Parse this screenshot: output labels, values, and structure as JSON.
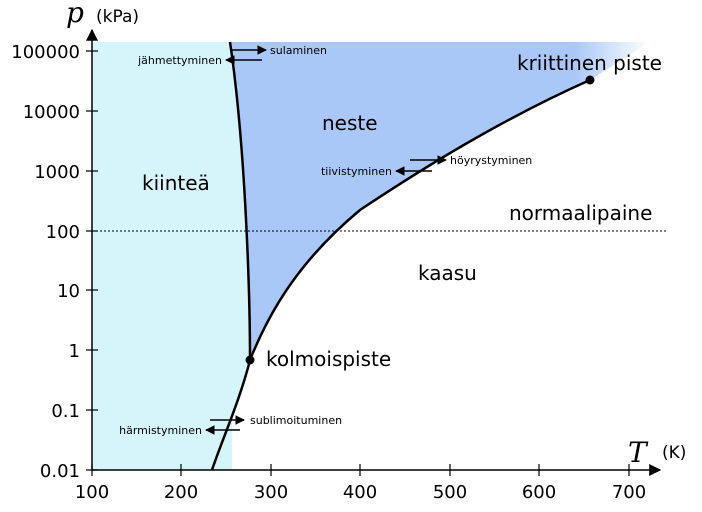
{
  "colors": {
    "solid": "#d6f5fb",
    "liquid": "#a9c8f8",
    "curve": "#000000"
  },
  "chart_data": {
    "type": "phase-diagram",
    "x_axis": {
      "symbol": "T",
      "unit": "(K)",
      "range": [
        100,
        730
      ],
      "ticks": [
        "100",
        "200",
        "300",
        "400",
        "500",
        "600",
        "700"
      ]
    },
    "y_axis": {
      "symbol": "p",
      "unit": "(kPa)",
      "scale": "log",
      "range": [
        0.01,
        150000
      ],
      "ticks": [
        "0.01",
        "0.1",
        "1",
        "10",
        "100",
        "1000",
        "10000",
        "100000"
      ]
    },
    "regions": {
      "solid": "kiinteä",
      "liquid": "neste",
      "gas": "kaasu"
    },
    "points": {
      "triple": {
        "label": "kolmoispiste",
        "T": 273,
        "p": 0.61
      },
      "critical": {
        "label": "kriittinen piste",
        "T": 647,
        "p": 22064
      }
    },
    "reference_line": {
      "label": "normaalipaine",
      "p": 101.3
    },
    "processes": {
      "melting": "sulaminen",
      "freezing": "jähmettyminen",
      "vaporization": "höyrystyminen",
      "condensation": "tiivistyminen",
      "sublimation": "sublimoituminen",
      "deposition": "härmistyminen"
    }
  }
}
